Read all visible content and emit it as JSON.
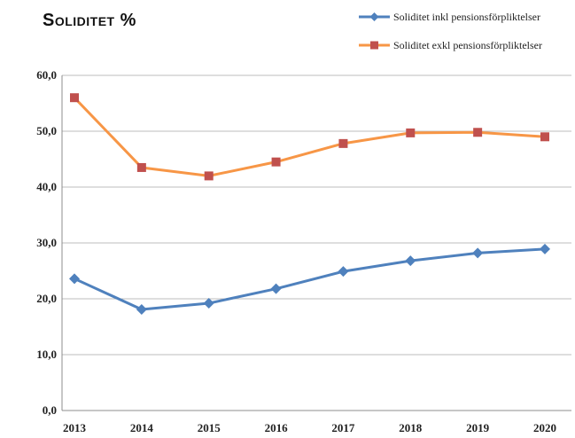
{
  "title": "Soliditet %",
  "chart_data": {
    "type": "line",
    "title": "Soliditet %",
    "xlabel": "",
    "ylabel": "",
    "x": [
      "2013",
      "2014",
      "2015",
      "2016",
      "2017",
      "2018",
      "2019",
      "2020"
    ],
    "ylim": [
      0,
      60
    ],
    "yticks": [
      "0,0",
      "10,0",
      "20,0",
      "30,0",
      "40,0",
      "50,0",
      "60,0"
    ],
    "grid": true,
    "legend": "top-right",
    "series": [
      {
        "name": "Soliditet inkl pensionsförpliktelser",
        "color": "#4f81bd",
        "marker": "diamond",
        "values": [
          23.6,
          18.1,
          19.2,
          21.8,
          24.9,
          26.8,
          28.2,
          28.9
        ]
      },
      {
        "name": "Soliditet exkl pensionsförpliktelser",
        "color": "#f79646",
        "marker_color": "#c0504d",
        "marker": "square",
        "values": [
          56.0,
          43.5,
          42.0,
          44.5,
          47.8,
          49.7,
          49.8,
          49.0
        ]
      }
    ]
  }
}
